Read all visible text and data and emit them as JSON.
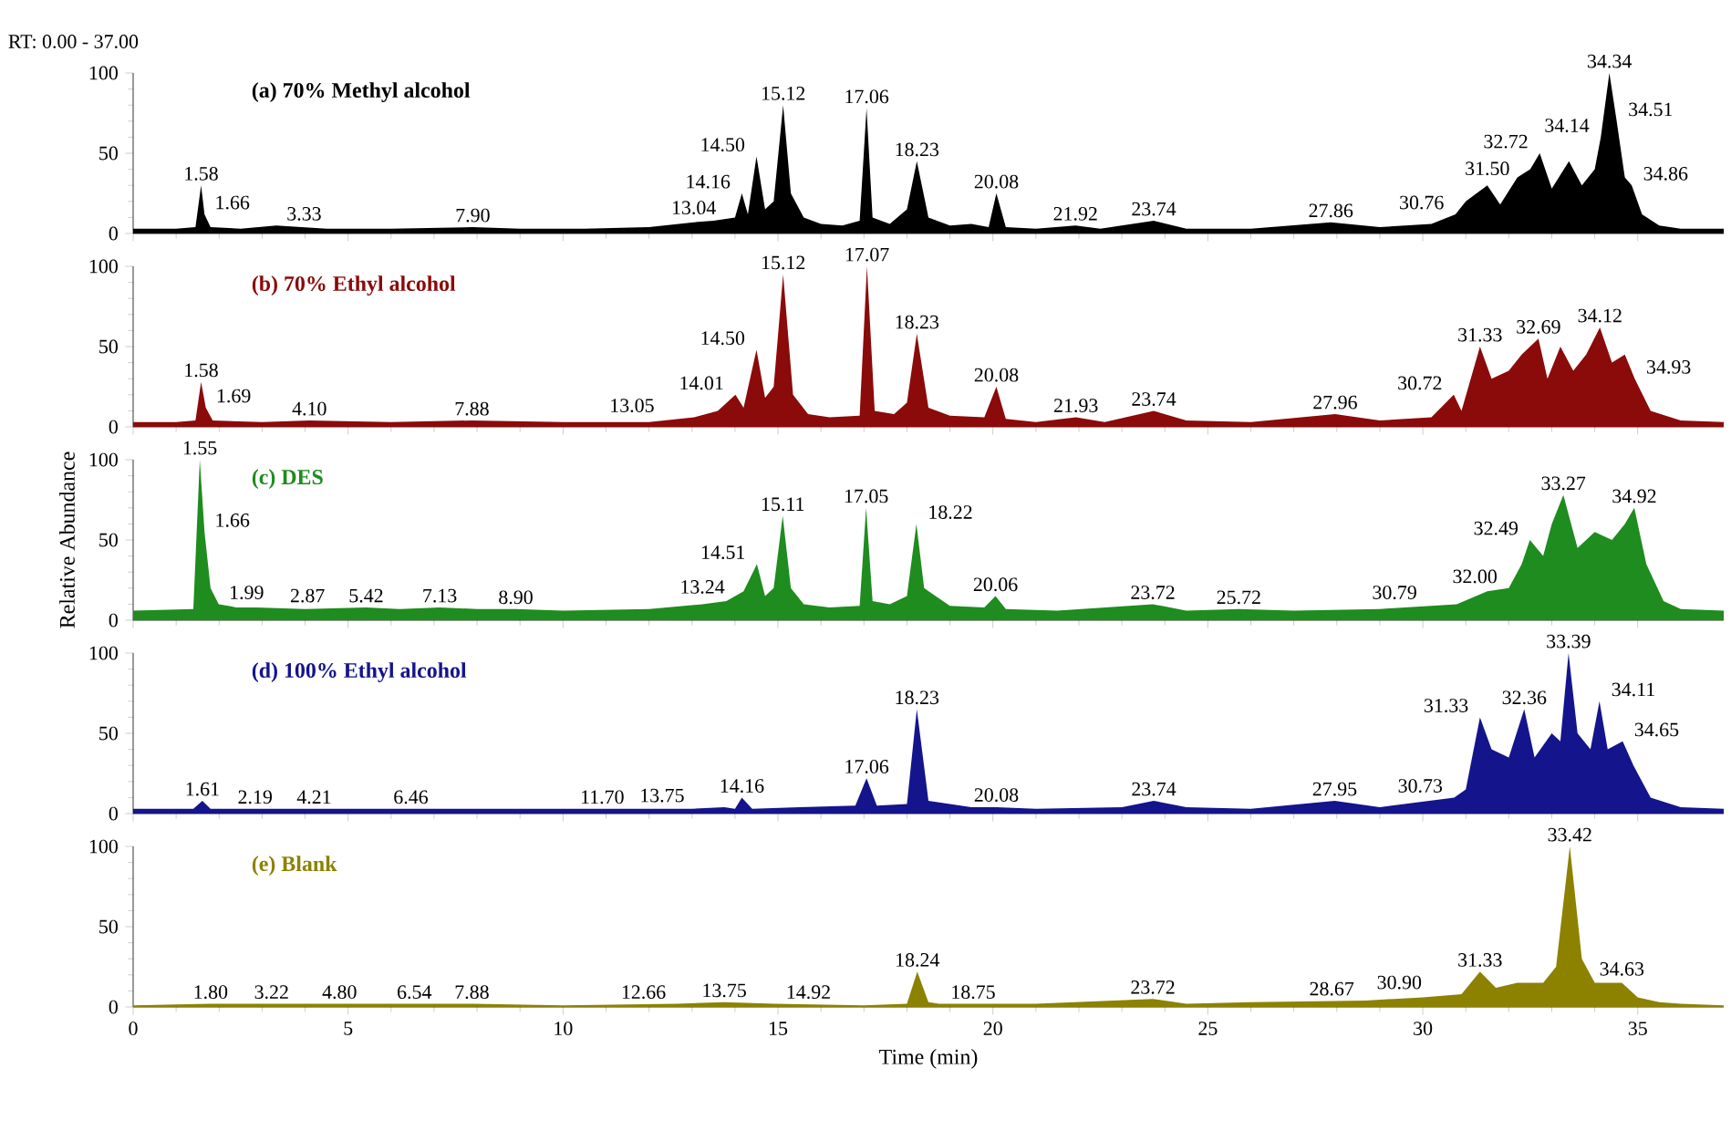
{
  "chart_data": [
    {
      "type": "area",
      "title": "(a) 70% Methyl alcohol",
      "xlim": [
        0,
        37
      ],
      "ylim": [
        0,
        100
      ],
      "xticks": [
        0,
        5,
        10,
        15,
        20,
        25,
        30,
        35
      ],
      "yticks": [
        0,
        50,
        100
      ],
      "tick_labels": "y",
      "series": [
        {
          "color": "#000000",
          "x": [
            0,
            0.5,
            1.0,
            1.45,
            1.58,
            1.66,
            1.8,
            2.5,
            3.33,
            4.5,
            6,
            7.9,
            9,
            10.5,
            12,
            13.04,
            13.5,
            14.0,
            14.16,
            14.3,
            14.5,
            14.7,
            14.9,
            15.12,
            15.3,
            15.6,
            16.0,
            16.5,
            16.9,
            17.06,
            17.2,
            17.6,
            18.0,
            18.23,
            18.5,
            19.0,
            19.5,
            19.9,
            20.08,
            20.3,
            21,
            21.92,
            22.5,
            23.74,
            24.5,
            26,
            27.86,
            29,
            30.2,
            30.76,
            31.0,
            31.5,
            31.8,
            32.2,
            32.5,
            32.72,
            33.0,
            33.4,
            33.7,
            34.0,
            34.14,
            34.34,
            34.51,
            34.7,
            34.86,
            35.1,
            35.5,
            36,
            37
          ],
          "values": [
            3,
            3,
            3,
            4,
            30,
            12,
            4,
            3,
            5,
            3,
            3,
            4,
            3,
            3,
            4,
            7,
            8,
            10,
            25,
            12,
            48,
            15,
            20,
            80,
            25,
            10,
            6,
            5,
            8,
            78,
            10,
            6,
            15,
            45,
            10,
            5,
            6,
            4,
            25,
            4,
            3,
            5,
            3,
            8,
            3,
            3,
            7,
            4,
            6,
            12,
            20,
            30,
            18,
            35,
            40,
            50,
            28,
            45,
            30,
            40,
            60,
            100,
            70,
            35,
            30,
            12,
            5,
            3,
            3
          ]
        }
      ],
      "annotations": [
        "RT: 0.00 - 37.00",
        {
          "text": "1.58",
          "x": 1.58,
          "y": 30
        },
        {
          "text": "1.66",
          "x": 1.66,
          "y": 12
        },
        {
          "text": "3.33",
          "x": 3.33,
          "y": 5
        },
        {
          "text": "7.90",
          "x": 7.9,
          "y": 4
        },
        {
          "text": "13.04",
          "x": 13.04,
          "y": 7
        },
        {
          "text": "14.16",
          "x": 14.16,
          "y": 25
        },
        {
          "text": "14.50",
          "x": 14.5,
          "y": 48
        },
        {
          "text": "15.12",
          "x": 15.12,
          "y": 80
        },
        {
          "text": "17.06",
          "x": 17.06,
          "y": 78
        },
        {
          "text": "18.23",
          "x": 18.23,
          "y": 45
        },
        {
          "text": "20.08",
          "x": 20.08,
          "y": 25
        },
        {
          "text": "21.92",
          "x": 21.92,
          "y": 5
        },
        {
          "text": "23.74",
          "x": 23.74,
          "y": 8
        },
        {
          "text": "27.86",
          "x": 27.86,
          "y": 7
        },
        {
          "text": "30.76",
          "x": 30.76,
          "y": 12
        },
        {
          "text": "31.50",
          "x": 31.5,
          "y": 30
        },
        {
          "text": "32.72",
          "x": 32.72,
          "y": 50
        },
        {
          "text": "34.14",
          "x": 34.14,
          "y": 60
        },
        {
          "text": "34.34",
          "x": 34.34,
          "y": 100
        },
        {
          "text": "34.51",
          "x": 34.51,
          "y": 70
        },
        {
          "text": "34.86",
          "x": 34.86,
          "y": 30
        }
      ]
    },
    {
      "type": "area",
      "title": "(b) 70% Ethyl alcohol",
      "xlim": [
        0,
        37
      ],
      "ylim": [
        0,
        100
      ],
      "xticks": [
        0,
        5,
        10,
        15,
        20,
        25,
        30,
        35
      ],
      "yticks": [
        0,
        50,
        100
      ],
      "tick_labels": "y",
      "series": [
        {
          "color": "#8b0a0a",
          "x": [
            0,
            1.0,
            1.45,
            1.58,
            1.69,
            1.85,
            3,
            4.1,
            6,
            7.88,
            10,
            12,
            13.05,
            13.6,
            14.01,
            14.2,
            14.5,
            14.7,
            14.9,
            15.12,
            15.35,
            15.7,
            16.2,
            16.9,
            17.07,
            17.25,
            17.7,
            18.0,
            18.23,
            18.5,
            19.0,
            19.8,
            20.08,
            20.3,
            21,
            21.93,
            22.6,
            23.74,
            24.5,
            26,
            27.96,
            29,
            30.2,
            30.72,
            30.9,
            31.33,
            31.6,
            32.0,
            32.3,
            32.69,
            32.9,
            33.2,
            33.5,
            33.8,
            34.12,
            34.4,
            34.7,
            34.93,
            35.3,
            36,
            37
          ],
          "values": [
            3,
            3,
            4,
            28,
            12,
            4,
            3,
            4,
            3,
            4,
            3,
            3,
            6,
            10,
            20,
            12,
            48,
            18,
            25,
            95,
            20,
            8,
            6,
            7,
            100,
            10,
            8,
            15,
            58,
            12,
            7,
            6,
            25,
            5,
            3,
            6,
            3,
            10,
            4,
            3,
            8,
            4,
            6,
            20,
            10,
            50,
            30,
            35,
            45,
            55,
            30,
            50,
            35,
            45,
            62,
            40,
            45,
            30,
            10,
            4,
            3
          ]
        }
      ],
      "annotations": [
        {
          "text": "1.58",
          "x": 1.58,
          "y": 28
        },
        {
          "text": "1.69",
          "x": 1.69,
          "y": 12
        },
        {
          "text": "4.10",
          "x": 4.1,
          "y": 4
        },
        {
          "text": "7.88",
          "x": 7.88,
          "y": 4
        },
        {
          "text": "13.05",
          "x": 13.05,
          "y": 6
        },
        {
          "text": "14.01",
          "x": 14.01,
          "y": 20
        },
        {
          "text": "14.50",
          "x": 14.5,
          "y": 48
        },
        {
          "text": "15.12",
          "x": 15.12,
          "y": 95
        },
        {
          "text": "17.07",
          "x": 17.07,
          "y": 100
        },
        {
          "text": "18.23",
          "x": 18.23,
          "y": 58
        },
        {
          "text": "20.08",
          "x": 20.08,
          "y": 25
        },
        {
          "text": "21.93",
          "x": 21.93,
          "y": 6
        },
        {
          "text": "23.74",
          "x": 23.74,
          "y": 10
        },
        {
          "text": "27.96",
          "x": 27.96,
          "y": 8
        },
        {
          "text": "30.72",
          "x": 30.72,
          "y": 20
        },
        {
          "text": "31.33",
          "x": 31.33,
          "y": 50
        },
        {
          "text": "32.69",
          "x": 32.69,
          "y": 55
        },
        {
          "text": "34.12",
          "x": 34.12,
          "y": 62
        },
        {
          "text": "34.93",
          "x": 34.93,
          "y": 30
        }
      ]
    },
    {
      "type": "area",
      "title": "(c) DES",
      "ylabel": "Relative Abundance",
      "xlim": [
        0,
        37
      ],
      "ylim": [
        0,
        100
      ],
      "xticks": [
        0,
        5,
        10,
        15,
        20,
        25,
        30,
        35
      ],
      "yticks": [
        0,
        50,
        100
      ],
      "tick_labels": "y",
      "series": [
        {
          "color": "#1e8c1e",
          "x": [
            0,
            1.4,
            1.55,
            1.66,
            1.8,
            1.99,
            2.4,
            2.87,
            4,
            5.42,
            6.2,
            7.13,
            8,
            8.9,
            10,
            12,
            13.24,
            13.8,
            14.2,
            14.51,
            14.7,
            14.9,
            15.11,
            15.3,
            15.6,
            16.2,
            16.9,
            17.05,
            17.2,
            17.6,
            18.0,
            18.22,
            18.4,
            19.0,
            19.8,
            20.06,
            20.3,
            21.5,
            23.72,
            24.5,
            25.72,
            27,
            29,
            30.79,
            31.5,
            32.0,
            32.3,
            32.49,
            32.8,
            33.0,
            33.27,
            33.6,
            34.0,
            34.4,
            34.7,
            34.92,
            35.2,
            35.6,
            36,
            37
          ],
          "values": [
            6,
            7,
            100,
            55,
            20,
            10,
            8,
            8,
            7,
            8,
            7,
            8,
            7,
            7,
            6,
            7,
            10,
            12,
            18,
            35,
            15,
            20,
            65,
            20,
            10,
            8,
            9,
            70,
            12,
            10,
            15,
            60,
            20,
            9,
            8,
            15,
            7,
            6,
            10,
            6,
            7,
            6,
            7,
            10,
            18,
            20,
            35,
            50,
            40,
            60,
            78,
            45,
            55,
            50,
            60,
            70,
            35,
            12,
            7,
            6
          ]
        }
      ],
      "annotations": [
        {
          "text": "1.55",
          "x": 1.55,
          "y": 100
        },
        {
          "text": "1.66",
          "x": 1.66,
          "y": 55
        },
        {
          "text": "1.99",
          "x": 1.99,
          "y": 10
        },
        {
          "text": "2.87",
          "x": 2.87,
          "y": 8
        },
        {
          "text": "5.42",
          "x": 5.42,
          "y": 8
        },
        {
          "text": "7.13",
          "x": 7.13,
          "y": 8
        },
        {
          "text": "8.90",
          "x": 8.9,
          "y": 7
        },
        {
          "text": "13.24",
          "x": 13.24,
          "y": 10
        },
        {
          "text": "14.51",
          "x": 14.51,
          "y": 35
        },
        {
          "text": "15.11",
          "x": 15.11,
          "y": 65
        },
        {
          "text": "17.05",
          "x": 17.05,
          "y": 70
        },
        {
          "text": "18.22",
          "x": 18.22,
          "y": 60
        },
        {
          "text": "20.06",
          "x": 20.06,
          "y": 15
        },
        {
          "text": "23.72",
          "x": 23.72,
          "y": 10
        },
        {
          "text": "25.72",
          "x": 25.72,
          "y": 7
        },
        {
          "text": "30.79",
          "x": 30.79,
          "y": 10
        },
        {
          "text": "32.00",
          "x": 32.0,
          "y": 20
        },
        {
          "text": "32.49",
          "x": 32.49,
          "y": 50
        },
        {
          "text": "33.27",
          "x": 33.27,
          "y": 78
        },
        {
          "text": "34.92",
          "x": 34.92,
          "y": 70
        }
      ]
    },
    {
      "type": "area",
      "title": "(d) 100% Ethyl alcohol",
      "xlim": [
        0,
        37
      ],
      "ylim": [
        0,
        100
      ],
      "xticks": [
        0,
        5,
        10,
        15,
        20,
        25,
        30,
        35
      ],
      "yticks": [
        0,
        50,
        100
      ],
      "tick_labels": "y",
      "series": [
        {
          "color": "#14148c",
          "x": [
            0,
            1.4,
            1.61,
            1.8,
            2.19,
            3,
            4.21,
            5.5,
            6.46,
            8,
            10,
            11.7,
            13,
            13.75,
            14.0,
            14.16,
            14.4,
            15.5,
            16.8,
            17.06,
            17.3,
            18.0,
            18.23,
            18.5,
            19.5,
            20.08,
            21,
            23,
            23.74,
            24.5,
            26,
            27.95,
            29,
            30.73,
            31.0,
            31.33,
            31.6,
            32.0,
            32.36,
            32.6,
            33.0,
            33.2,
            33.39,
            33.6,
            33.9,
            34.11,
            34.3,
            34.65,
            34.9,
            35.3,
            36,
            37
          ],
          "values": [
            3,
            3,
            8,
            3,
            3,
            3,
            3,
            3,
            3,
            3,
            3,
            3,
            3,
            4,
            3,
            10,
            3,
            4,
            5,
            22,
            5,
            6,
            65,
            8,
            4,
            4,
            3,
            4,
            8,
            4,
            3,
            8,
            4,
            10,
            15,
            60,
            40,
            35,
            65,
            35,
            50,
            45,
            100,
            50,
            40,
            70,
            40,
            45,
            30,
            10,
            4,
            3
          ]
        }
      ],
      "annotations": [
        {
          "text": "1.61",
          "x": 1.61,
          "y": 8
        },
        {
          "text": "2.19",
          "x": 2.19,
          "y": 3
        },
        {
          "text": "4.21",
          "x": 4.21,
          "y": 3
        },
        {
          "text": "6.46",
          "x": 6.46,
          "y": 3
        },
        {
          "text": "11.70",
          "x": 11.7,
          "y": 3
        },
        {
          "text": "13.75",
          "x": 13.75,
          "y": 4
        },
        {
          "text": "14.16",
          "x": 14.16,
          "y": 10
        },
        {
          "text": "17.06",
          "x": 17.06,
          "y": 22
        },
        {
          "text": "18.23",
          "x": 18.23,
          "y": 65
        },
        {
          "text": "20.08",
          "x": 20.08,
          "y": 4
        },
        {
          "text": "23.74",
          "x": 23.74,
          "y": 8
        },
        {
          "text": "27.95",
          "x": 27.95,
          "y": 8
        },
        {
          "text": "30.73",
          "x": 30.73,
          "y": 10
        },
        {
          "text": "31.33",
          "x": 31.33,
          "y": 60
        },
        {
          "text": "32.36",
          "x": 32.36,
          "y": 65
        },
        {
          "text": "33.39",
          "x": 33.39,
          "y": 100
        },
        {
          "text": "34.11",
          "x": 34.11,
          "y": 70
        },
        {
          "text": "34.65",
          "x": 34.65,
          "y": 45
        }
      ]
    },
    {
      "type": "area",
      "title": "(e) Blank",
      "xlabel": "Time (min)",
      "xlim": [
        0,
        37
      ],
      "ylim": [
        0,
        100
      ],
      "xticks": [
        0,
        5,
        10,
        15,
        20,
        25,
        30,
        35
      ],
      "yticks": [
        0,
        50,
        100
      ],
      "series": [
        {
          "color": "#8c8200",
          "x": [
            0,
            1.8,
            3.22,
            4.8,
            6.54,
            7.88,
            10,
            12.66,
            13.75,
            14.92,
            17,
            18.0,
            18.24,
            18.5,
            18.75,
            21,
            23.72,
            24.5,
            26,
            28.67,
            30.0,
            30.9,
            31.33,
            31.7,
            32.2,
            32.8,
            33.1,
            33.42,
            33.7,
            34.0,
            34.63,
            35.0,
            35.5,
            36,
            37
          ],
          "values": [
            1,
            2,
            2,
            2,
            2,
            2,
            1,
            2,
            3,
            2,
            1,
            2,
            22,
            3,
            2,
            2,
            5,
            2,
            3,
            4,
            6,
            8,
            22,
            12,
            15,
            15,
            25,
            100,
            30,
            15,
            15,
            6,
            3,
            2,
            1
          ]
        }
      ],
      "annotations": [
        {
          "text": "1.80",
          "x": 1.8,
          "y": 2
        },
        {
          "text": "3.22",
          "x": 3.22,
          "y": 2
        },
        {
          "text": "4.80",
          "x": 4.8,
          "y": 2
        },
        {
          "text": "6.54",
          "x": 6.54,
          "y": 2
        },
        {
          "text": "7.88",
          "x": 7.88,
          "y": 2
        },
        {
          "text": "12.66",
          "x": 12.66,
          "y": 2
        },
        {
          "text": "13.75",
          "x": 13.75,
          "y": 3
        },
        {
          "text": "14.92",
          "x": 14.92,
          "y": 2
        },
        {
          "text": "18.24",
          "x": 18.24,
          "y": 22
        },
        {
          "text": "18.75",
          "x": 18.75,
          "y": 2
        },
        {
          "text": "23.72",
          "x": 23.72,
          "y": 5
        },
        {
          "text": "28.67",
          "x": 28.67,
          "y": 4
        },
        {
          "text": "30.90",
          "x": 30.9,
          "y": 8
        },
        {
          "text": "31.33",
          "x": 31.33,
          "y": 22
        },
        {
          "text": "33.42",
          "x": 33.42,
          "y": 100
        },
        {
          "text": "34.63",
          "x": 34.63,
          "y": 15
        }
      ]
    }
  ]
}
